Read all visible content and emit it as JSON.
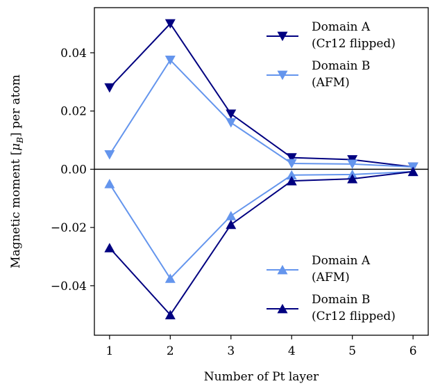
{
  "chart_data": {
    "type": "line",
    "xlabel": "Number of Pt layer",
    "ylabel": "Magnetic moment [μB] per atom",
    "ylabel_parts": {
      "prefix": "Magnetic moment [",
      "symbol": "μ",
      "subscript": "B",
      "suffix": "] per atom"
    },
    "xlim": [
      0.75,
      6.25
    ],
    "ylim": [
      -0.057,
      0.0555
    ],
    "x": [
      1,
      2,
      3,
      4,
      5,
      6
    ],
    "xticks": [
      1,
      2,
      3,
      4,
      5,
      6
    ],
    "xtick_labels": [
      "1",
      "2",
      "3",
      "4",
      "5",
      "6"
    ],
    "yticks": [
      0.04,
      0.02,
      0.0,
      -0.02,
      -0.04
    ],
    "ytick_labels": [
      "0.04",
      "0.02",
      "0.00",
      "−0.02",
      "−0.04"
    ],
    "zero_line": true,
    "grid": false,
    "series": [
      {
        "name": "Domain A (Cr12 flipped)",
        "color": "#000080",
        "marker": "triangle-down",
        "values": [
          0.028,
          0.05,
          0.019,
          0.004,
          0.0033,
          0.0008
        ]
      },
      {
        "name": "Domain B (AFM)",
        "color": "#6495ED",
        "marker": "triangle-down",
        "values": [
          0.005,
          0.0375,
          0.016,
          0.002,
          0.0018,
          0.0008
        ]
      },
      {
        "name": "Domain A (AFM)",
        "color": "#6495ED",
        "marker": "triangle-up",
        "values": [
          -0.005,
          -0.0375,
          -0.016,
          -0.002,
          -0.0018,
          -0.0008
        ]
      },
      {
        "name": "Domain B (Cr12 flipped)",
        "color": "#000080",
        "marker": "triangle-up",
        "values": [
          -0.027,
          -0.05,
          -0.019,
          -0.004,
          -0.0033,
          -0.0008
        ]
      }
    ],
    "legends": [
      {
        "placement": "upper-right",
        "entries": [
          {
            "series": 0,
            "line1": "Domain A",
            "line2": "(Cr12 flipped)"
          },
          {
            "series": 1,
            "line1": "Domain B",
            "line2": "(AFM)"
          }
        ]
      },
      {
        "placement": "lower-right",
        "entries": [
          {
            "series": 2,
            "line1": "Domain A",
            "line2": "(AFM)"
          },
          {
            "series": 3,
            "line1": "Domain B",
            "line2": "(Cr12 flipped)"
          }
        ]
      }
    ]
  }
}
